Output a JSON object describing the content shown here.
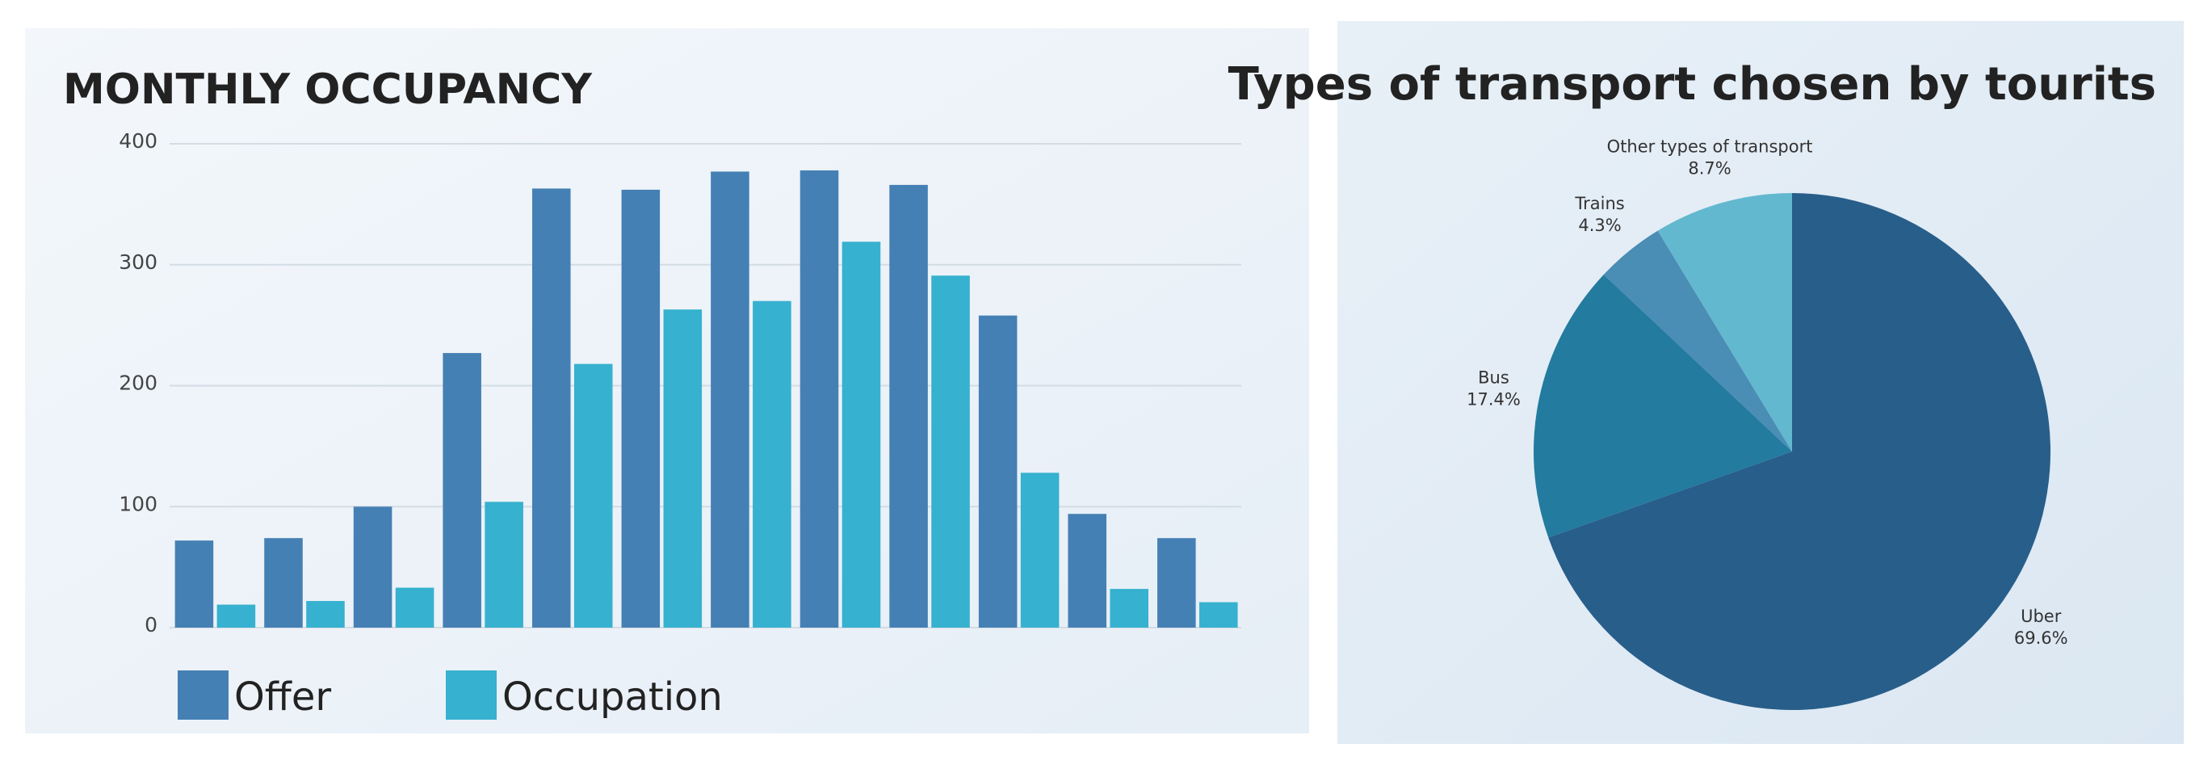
{
  "chart_data": [
    {
      "type": "bar",
      "title": "MONTHLY OCCUPANCY",
      "categories": [
        null,
        null,
        null,
        null,
        null,
        null,
        null,
        null,
        null,
        null,
        null,
        null
      ],
      "series": [
        {
          "name": "Offer",
          "color": "#4580b4",
          "values": [
            72,
            74,
            100,
            227,
            363,
            362,
            377,
            378,
            366,
            258,
            94,
            74
          ]
        },
        {
          "name": "Occupation",
          "color": "#36b1cf",
          "values": [
            19,
            22,
            33,
            104,
            218,
            263,
            270,
            319,
            291,
            128,
            32,
            21
          ]
        }
      ],
      "ylim": [
        0,
        400
      ],
      "yticks": [
        0,
        100,
        200,
        300,
        400
      ],
      "grid": true
    },
    {
      "type": "pie",
      "title": "Types of transport chosen by tourits",
      "categories": [
        "Uber",
        "Bus",
        "Trains",
        "Other types of transport"
      ],
      "values": [
        69.6,
        17.4,
        4.3,
        8.7
      ],
      "value_labels": [
        "69.6%",
        "17.4%",
        "4.3%",
        "8.7%"
      ],
      "colors": [
        "#285e8a",
        "#237b9f",
        "#4a8db5",
        "#62b8cf"
      ]
    }
  ]
}
